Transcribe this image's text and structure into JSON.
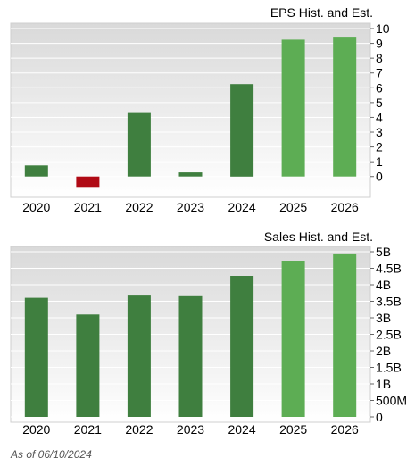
{
  "chart_data": [
    {
      "type": "bar",
      "title": "EPS Hist. and Est.",
      "categories": [
        "2020",
        "2021",
        "2022",
        "2023",
        "2024",
        "2025",
        "2026"
      ],
      "values": [
        0.75,
        -0.7,
        4.35,
        0.28,
        6.25,
        9.25,
        9.45
      ],
      "estimate_from": "2025",
      "ylim": [
        -0.8,
        10
      ],
      "yticks": [
        0,
        1,
        2,
        3,
        4,
        5,
        6,
        7,
        8,
        9,
        10
      ],
      "ytick_labels": [
        "0",
        "1",
        "2",
        "3",
        "4",
        "5",
        "6",
        "7",
        "8",
        "9",
        "10"
      ],
      "y_axis_side": "right",
      "grid": true
    },
    {
      "type": "bar",
      "title": "Sales Hist. and Est.",
      "categories": [
        "2020",
        "2021",
        "2022",
        "2023",
        "2024",
        "2025",
        "2026"
      ],
      "values": [
        3605000000,
        3100000000,
        3700000000,
        3680000000,
        4270000000,
        4730000000,
        4950000000
      ],
      "estimate_from": "2025",
      "ylim": [
        0,
        5000000000
      ],
      "yticks": [
        0,
        500000000,
        1000000000,
        1500000000,
        2000000000,
        2500000000,
        3000000000,
        3500000000,
        4000000000,
        4500000000,
        5000000000
      ],
      "ytick_labels": [
        "0",
        "500M",
        "1B",
        "1.5B",
        "2B",
        "2.5B",
        "3B",
        "3.5B",
        "4B",
        "4.5B",
        "5B"
      ],
      "y_axis_side": "right",
      "grid": true
    }
  ],
  "colors": {
    "historical": "#3f7f3f",
    "estimate": "#5dad54",
    "negative": "#b00a15",
    "plot_top": "#dcdcdc",
    "plot_bottom": "#ffffff",
    "grid": "#ffffff"
  },
  "footer": "As of 06/10/2024"
}
